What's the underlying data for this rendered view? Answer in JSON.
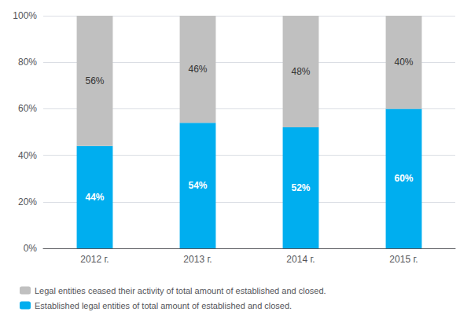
{
  "chart_data": {
    "type": "bar",
    "stacked": true,
    "data_labels": true,
    "grid": true,
    "legend": "lower left",
    "categories": [
      "2012 г.",
      "2013 г.",
      "2014 г.",
      "2015 г."
    ],
    "series": [
      {
        "name": "Established legal entities of total amount of established and closed.",
        "color": "#00AEEF",
        "values": [
          44,
          54,
          52,
          60
        ],
        "value_labels": [
          "44%",
          "54%",
          "52%",
          "60%"
        ]
      },
      {
        "name": "Legal entities ceased their activity of total amount of established and closed.",
        "color": "#C0C0C0",
        "values": [
          56,
          46,
          48,
          40
        ],
        "value_labels": [
          "56%",
          "46%",
          "48%",
          "40%"
        ]
      }
    ],
    "ylim": [
      0,
      100
    ],
    "yticks": [
      {
        "value": 0,
        "label": "0%"
      },
      {
        "value": 20,
        "label": "20%"
      },
      {
        "value": 40,
        "label": "40%"
      },
      {
        "value": 60,
        "label": "60%"
      },
      {
        "value": 80,
        "label": "80%"
      },
      {
        "value": 100,
        "label": "100%"
      }
    ]
  }
}
